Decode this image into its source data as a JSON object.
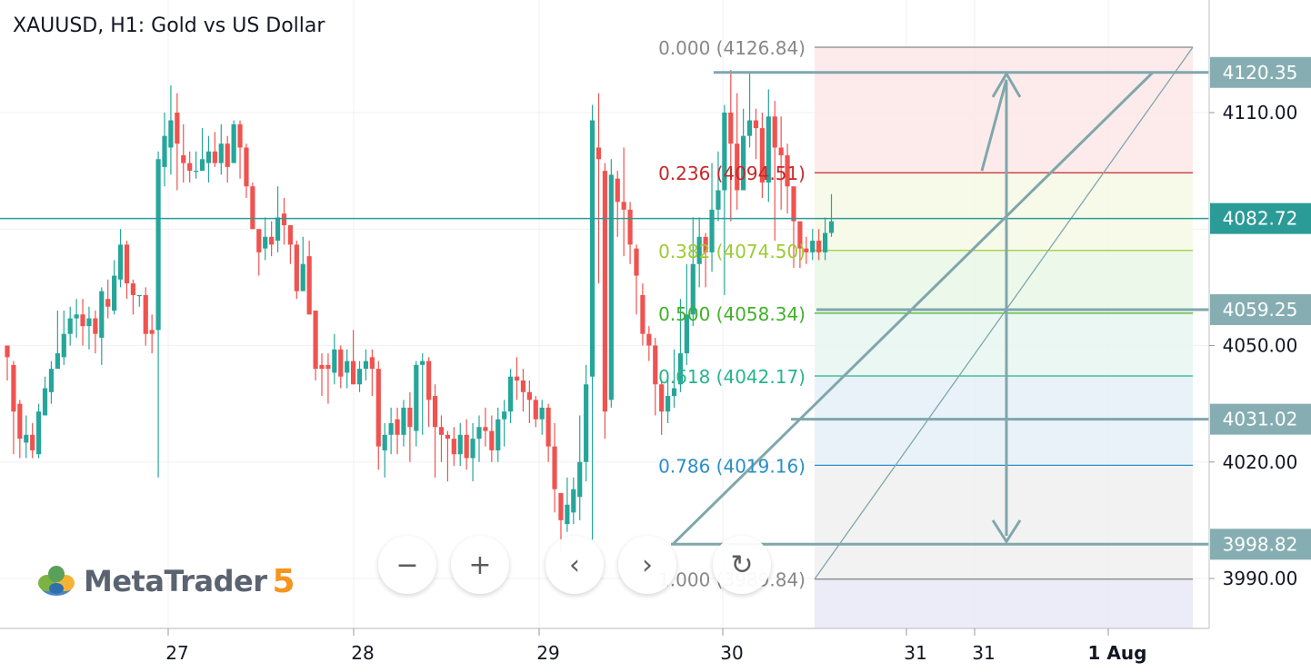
{
  "title": "XAUUSD, H1: Gold vs US Dollar",
  "logo": {
    "text": "MetaTrader",
    "version": "5"
  },
  "nav_buttons": [
    {
      "name": "zoom-out-button",
      "icon": "minus-icon",
      "glyph": "−"
    },
    {
      "name": "zoom-in-button",
      "icon": "plus-icon",
      "glyph": "+"
    },
    {
      "name": "scroll-left-button",
      "icon": "chevron-left-icon",
      "glyph": "‹"
    },
    {
      "name": "scroll-right-button",
      "icon": "chevron-right-icon",
      "glyph": "›"
    },
    {
      "name": "reset-button",
      "icon": "reset-icon",
      "glyph": "↻"
    }
  ],
  "colors": {
    "up": "#26a69a",
    "down": "#ef5350",
    "annotation": "#7fa7ac",
    "axis_tag": "#86aeb2",
    "current_price": "#2b9b97"
  },
  "chart_data": {
    "type": "candlestick",
    "ylim": [
      3981,
      4130
    ],
    "grid": true,
    "y_ticks": [
      "4110.00",
      "4050.00",
      "4020.00",
      "3990.00"
    ],
    "x_ticks": [
      "27",
      "28",
      "29",
      "30",
      "31",
      "31",
      "1 Aug"
    ],
    "current_price": "4082.72",
    "price_tags": [
      "4120.35",
      "4082.72",
      "4059.25",
      "4031.02",
      "3998.82"
    ],
    "fibonacci": {
      "levels": [
        {
          "ratio": "0.000",
          "price": "4126.84",
          "color": "#888888"
        },
        {
          "ratio": "0.236",
          "price": "4094.51",
          "color": "#c62828"
        },
        {
          "ratio": "0.382",
          "price": "4074.50",
          "color": "#9ccc33"
        },
        {
          "ratio": "0.500",
          "price": "4058.34",
          "color": "#43b02a"
        },
        {
          "ratio": "0.618",
          "price": "4042.17",
          "color": "#26b58a"
        },
        {
          "ratio": "0.786",
          "price": "4019.16",
          "color": "#2a8fc6"
        },
        {
          "ratio": "1.000",
          "price": "3989.84",
          "color": "#888888"
        }
      ]
    },
    "candles": [
      [
        4050,
        4047,
        4050,
        4041
      ],
      [
        4045,
        4033,
        4046,
        4022
      ],
      [
        4035,
        4026,
        4036,
        4021
      ],
      [
        4025,
        4027,
        4032,
        4021
      ],
      [
        4027,
        4023,
        4030,
        4021
      ],
      [
        4022,
        4033,
        4035,
        4021
      ],
      [
        4032,
        4039,
        4042,
        4035
      ],
      [
        4038,
        4044,
        4046,
        4035
      ],
      [
        4044,
        4048,
        4059,
        4045
      ],
      [
        4047,
        4053,
        4059,
        4045
      ],
      [
        4053,
        4057,
        4060,
        4050
      ],
      [
        4057,
        4058,
        4062,
        4052
      ],
      [
        4058,
        4055,
        4062,
        4050
      ],
      [
        4055,
        4057,
        4060,
        4049
      ],
      [
        4057,
        4053,
        4059,
        4048
      ],
      [
        4052,
        4064,
        4065,
        4045
      ],
      [
        4062,
        4060,
        4067,
        4057
      ],
      [
        4059,
        4068,
        4072,
        4058
      ],
      [
        4067,
        4076,
        4080,
        4065
      ],
      [
        4076,
        4066,
        4077,
        4062
      ],
      [
        4066,
        4063,
        4067,
        4058
      ],
      [
        4063,
        4063,
        4063,
        4060
      ],
      [
        4063,
        4053,
        4065,
        4050
      ],
      [
        4054,
        4053,
        4058,
        4048
      ],
      [
        4054,
        4098,
        4100,
        4016
      ],
      [
        4096,
        4104,
        4110,
        4091
      ],
      [
        4101,
        4108,
        4117,
        4094
      ],
      [
        4110,
        4102,
        4115,
        4090
      ],
      [
        4099,
        4097,
        4107,
        4092
      ],
      [
        4097,
        4095,
        4100,
        4092
      ],
      [
        4095,
        4095,
        4100,
        4093
      ],
      [
        4095,
        4098,
        4106,
        4096
      ],
      [
        4097,
        4100,
        4104,
        4092
      ],
      [
        4100,
        4097,
        4105,
        4096
      ],
      [
        4097,
        4102,
        4107,
        4094
      ],
      [
        4102,
        4096,
        4104,
        4092
      ],
      [
        4097,
        4107,
        4108,
        4102
      ],
      [
        4107,
        4101,
        4108,
        4093
      ],
      [
        4101,
        4091,
        4102,
        4088
      ],
      [
        4091,
        4080,
        4092,
        4080
      ],
      [
        4080,
        4074,
        4080,
        4068
      ],
      [
        4075,
        4078,
        4083,
        4072
      ],
      [
        4078,
        4076,
        4082,
        4073
      ],
      [
        4077,
        4083,
        4091,
        4074
      ],
      [
        4084,
        4081,
        4088,
        4076
      ],
      [
        4081,
        4076,
        4081,
        4071
      ],
      [
        4076,
        4064,
        4077,
        4062
      ],
      [
        4064,
        4071,
        4078,
        4069
      ],
      [
        4073,
        4058,
        4077,
        4058
      ],
      [
        4059,
        4044,
        4059,
        4041
      ],
      [
        4045,
        4044,
        4048,
        4037
      ],
      [
        4045,
        4044,
        4048,
        4035
      ],
      [
        4043,
        4049,
        4053,
        4040
      ],
      [
        4049,
        4042,
        4050,
        4039
      ],
      [
        4043,
        4046,
        4049,
        4039
      ],
      [
        4046,
        4040,
        4054,
        4040
      ],
      [
        4040,
        4044,
        4046,
        4038
      ],
      [
        4044,
        4046,
        4049,
        4041
      ],
      [
        4047,
        4044,
        4049,
        4037
      ],
      [
        4044,
        4024,
        4046,
        4018
      ],
      [
        4023,
        4027,
        4030,
        4016
      ],
      [
        4027,
        4030,
        4034,
        4022
      ],
      [
        4031,
        4027,
        4034,
        4022
      ],
      [
        4027,
        4034,
        4036,
        4024
      ],
      [
        4034,
        4029,
        4038,
        4020
      ],
      [
        4028,
        4045,
        4046,
        4024
      ],
      [
        4045,
        4046,
        4048,
        4027
      ],
      [
        4046,
        4036,
        4047,
        4029
      ],
      [
        4037,
        4029,
        4040,
        4016
      ],
      [
        4029,
        4027,
        4032,
        4020
      ],
      [
        4027,
        4026,
        4028,
        4015
      ],
      [
        4026,
        4022,
        4029,
        4019
      ],
      [
        4022,
        4027,
        4030,
        4019
      ],
      [
        4027,
        4021,
        4031,
        4018
      ],
      [
        4021,
        4026,
        4030,
        4015
      ],
      [
        4026,
        4029,
        4032,
        4020
      ],
      [
        4029,
        4028,
        4034,
        4024
      ],
      [
        4028,
        4023,
        4032,
        4020
      ],
      [
        4023,
        4031,
        4034,
        4020
      ],
      [
        4031,
        4033,
        4036,
        4024
      ],
      [
        4033,
        4042,
        4044,
        4030
      ],
      [
        4042,
        4041,
        4047,
        4036
      ],
      [
        4041,
        4038,
        4044,
        4033
      ],
      [
        4038,
        4036,
        4041,
        4030
      ],
      [
        4036,
        4031,
        4037,
        4029
      ],
      [
        4031,
        4034,
        4036,
        4027
      ],
      [
        4034,
        4024,
        4035,
        4020
      ],
      [
        4024,
        4013,
        4030,
        4007
      ],
      [
        4012,
        4005,
        4012,
        3997
      ],
      [
        4004,
        4009,
        4016,
        4002
      ],
      [
        4007,
        4013,
        4016,
        4004
      ],
      [
        4011,
        4020,
        4032,
        4005
      ],
      [
        4020,
        4040,
        4045,
        4015
      ],
      [
        4042,
        4108,
        4112,
        4000
      ],
      [
        4101,
        4098,
        4115,
        4066
      ],
      [
        4095,
        4033,
        4097,
        4026
      ],
      [
        4036,
        4094,
        4098,
        4034
      ],
      [
        4093,
        4087,
        4095,
        4078
      ],
      [
        4087,
        4085,
        4101,
        4073
      ],
      [
        4085,
        4076,
        4087,
        4071
      ],
      [
        4075,
        4068,
        4076,
        4058
      ],
      [
        4063,
        4053,
        4066,
        4050
      ],
      [
        4053,
        4050,
        4055,
        4046
      ],
      [
        4050,
        4040,
        4052,
        4032
      ],
      [
        4040,
        4033,
        4041,
        4027
      ],
      [
        4033,
        4037,
        4043,
        4030
      ],
      [
        4037,
        4039,
        4049,
        4034
      ],
      [
        4040,
        4048,
        4062,
        4038
      ],
      [
        4048,
        4058,
        4071,
        4045
      ],
      [
        4058,
        4071,
        4083,
        4055
      ],
      [
        4071,
        4078,
        4083,
        4065
      ],
      [
        4078,
        4074,
        4079,
        4065
      ],
      [
        4074,
        4085,
        4097,
        4069
      ],
      [
        4085,
        4090,
        4100,
        4082
      ],
      [
        4090,
        4110,
        4112,
        4063
      ],
      [
        4110,
        4102,
        4121,
        4082
      ],
      [
        4102,
        4090,
        4115,
        4085
      ],
      [
        4090,
        4104,
        4111,
        4098
      ],
      [
        4104,
        4108,
        4120,
        4101
      ],
      [
        4108,
        4106,
        4111,
        4098
      ],
      [
        4106,
        4092,
        4110,
        4088
      ],
      [
        4092,
        4109,
        4116,
        4087
      ],
      [
        4109,
        4101,
        4113,
        4077
      ],
      [
        4101,
        4099,
        4109,
        4085
      ],
      [
        4099,
        4091,
        4102,
        4084
      ],
      [
        4091,
        4082,
        4091,
        4070
      ],
      [
        4082,
        4075,
        4082,
        4070
      ],
      [
        4075,
        4074,
        4078,
        4071
      ],
      [
        4074,
        4077,
        4080,
        4072
      ],
      [
        4077,
        4074,
        4080,
        4072
      ],
      [
        4074,
        4079,
        4083,
        4072
      ],
      [
        4079,
        4082,
        4089,
        4078
      ]
    ]
  }
}
